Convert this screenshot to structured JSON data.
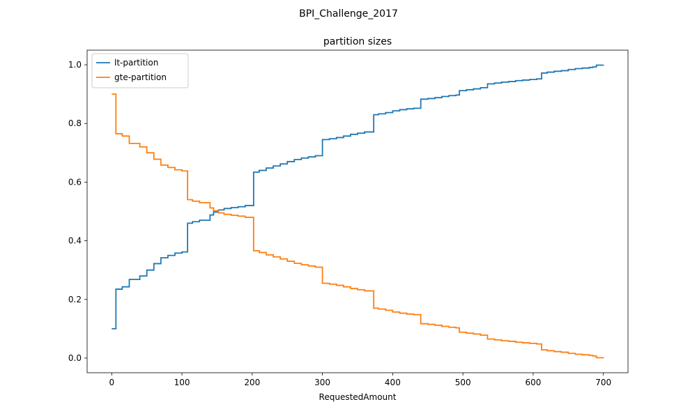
{
  "figure": {
    "suptitle": "BPI_Challenge_2017"
  },
  "chart_data": {
    "type": "line",
    "title": "partition sizes",
    "xlabel": "RequestedAmount",
    "ylabel": "",
    "xlim": [
      -35,
      735
    ],
    "ylim": [
      -0.05,
      1.05
    ],
    "xticks": [
      0,
      100,
      200,
      300,
      400,
      500,
      600,
      700
    ],
    "yticks": [
      0.0,
      0.2,
      0.4,
      0.6,
      0.8,
      1.0
    ],
    "xtick_labels": [
      "0",
      "100",
      "200",
      "300",
      "400",
      "500",
      "600",
      "700"
    ],
    "ytick_labels": [
      "0.0",
      "0.2",
      "0.4",
      "0.6",
      "0.8",
      "1.0"
    ],
    "grid": false,
    "legend_position": "upper-left",
    "step": true,
    "series": [
      {
        "name": "lt-partition",
        "color": "#1f77b4",
        "x": [
          0,
          6,
          15,
          25,
          40,
          50,
          60,
          70,
          80,
          90,
          100,
          108,
          115,
          125,
          140,
          145,
          152,
          160,
          170,
          180,
          190,
          202,
          210,
          220,
          230,
          240,
          250,
          260,
          270,
          280,
          290,
          300,
          310,
          320,
          330,
          340,
          350,
          360,
          373,
          380,
          390,
          400,
          410,
          420,
          430,
          440,
          450,
          460,
          470,
          480,
          490,
          495,
          505,
          515,
          525,
          535,
          545,
          555,
          565,
          575,
          585,
          595,
          605,
          612,
          620,
          630,
          640,
          650,
          660,
          670,
          680,
          685,
          690,
          700
        ],
        "y": [
          0.1,
          0.235,
          0.243,
          0.268,
          0.28,
          0.3,
          0.322,
          0.342,
          0.35,
          0.358,
          0.362,
          0.46,
          0.465,
          0.47,
          0.488,
          0.498,
          0.505,
          0.51,
          0.513,
          0.516,
          0.52,
          0.634,
          0.64,
          0.648,
          0.655,
          0.662,
          0.67,
          0.677,
          0.682,
          0.686,
          0.69,
          0.745,
          0.748,
          0.752,
          0.757,
          0.763,
          0.767,
          0.771,
          0.83,
          0.833,
          0.837,
          0.843,
          0.847,
          0.85,
          0.852,
          0.883,
          0.885,
          0.888,
          0.892,
          0.895,
          0.897,
          0.912,
          0.915,
          0.918,
          0.922,
          0.935,
          0.938,
          0.941,
          0.943,
          0.946,
          0.948,
          0.95,
          0.952,
          0.972,
          0.975,
          0.978,
          0.98,
          0.984,
          0.987,
          0.989,
          0.991,
          0.993,
          0.999,
          1.0
        ]
      },
      {
        "name": "gte-partition",
        "color": "#ff7f0e",
        "x": [
          0,
          6,
          15,
          25,
          40,
          50,
          60,
          70,
          80,
          90,
          100,
          108,
          115,
          125,
          140,
          145,
          152,
          160,
          170,
          180,
          190,
          202,
          210,
          220,
          230,
          240,
          250,
          260,
          270,
          280,
          290,
          300,
          310,
          320,
          330,
          340,
          350,
          360,
          373,
          380,
          390,
          400,
          410,
          420,
          430,
          440,
          450,
          460,
          470,
          480,
          490,
          495,
          505,
          515,
          525,
          535,
          545,
          555,
          565,
          575,
          585,
          595,
          605,
          612,
          620,
          630,
          640,
          650,
          660,
          670,
          680,
          685,
          690,
          700
        ],
        "y": [
          0.9,
          0.765,
          0.757,
          0.732,
          0.72,
          0.7,
          0.678,
          0.658,
          0.65,
          0.642,
          0.638,
          0.54,
          0.535,
          0.53,
          0.512,
          0.502,
          0.495,
          0.49,
          0.487,
          0.484,
          0.48,
          0.366,
          0.36,
          0.352,
          0.345,
          0.338,
          0.33,
          0.323,
          0.318,
          0.314,
          0.31,
          0.255,
          0.252,
          0.248,
          0.243,
          0.237,
          0.233,
          0.229,
          0.17,
          0.167,
          0.163,
          0.157,
          0.153,
          0.15,
          0.148,
          0.117,
          0.115,
          0.112,
          0.108,
          0.105,
          0.103,
          0.088,
          0.085,
          0.082,
          0.078,
          0.065,
          0.062,
          0.059,
          0.057,
          0.054,
          0.052,
          0.05,
          0.048,
          0.028,
          0.025,
          0.022,
          0.02,
          0.016,
          0.013,
          0.011,
          0.009,
          0.007,
          0.001,
          0.0
        ]
      }
    ]
  }
}
